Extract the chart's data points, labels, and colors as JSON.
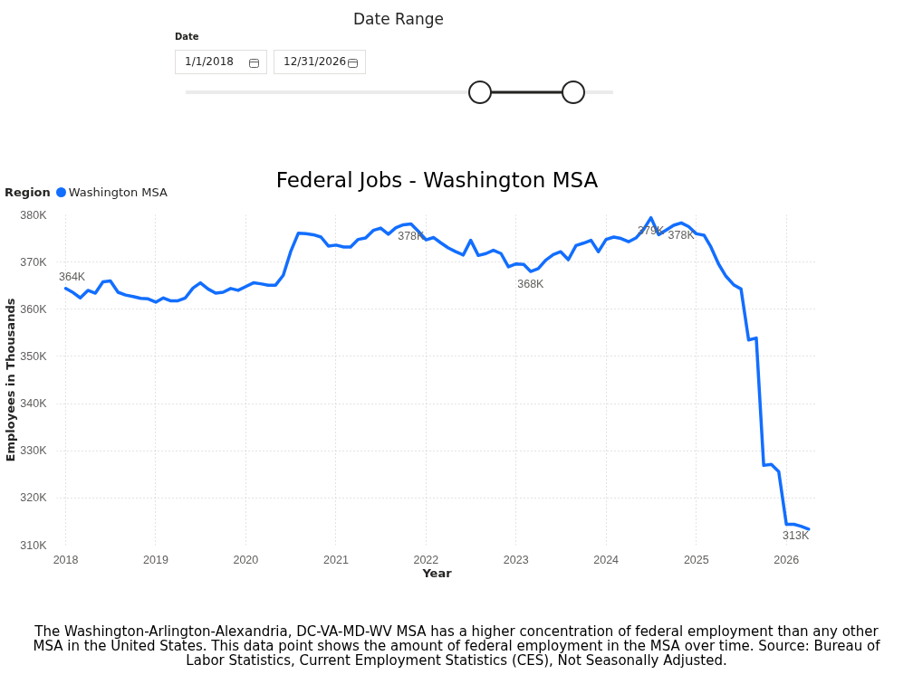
{
  "chart_data": {
    "type": "line",
    "title": "Federal Jobs - Washington MSA",
    "xlabel": "Year",
    "ylabel": "Employees in Thousands",
    "legend_title": "Region",
    "annotations": [
      "Date Range",
      "Date",
      "1/1/2018",
      "12/31/2026",
      "The Washington-Arlington-Alexandria, DC-VA-MD-WV MSA has a higher concentration of federal employment than any other MSA in the United States. This data point shows the amount of federal employment in the MSA over time. Source: Bureau of Labor Statistics, Current Employment Statistics (CES), Not Seasonally Adjusted."
    ],
    "x": [
      "2018-01",
      "2018-02",
      "2018-03",
      "2018-04",
      "2018-05",
      "2018-06",
      "2018-07",
      "2018-08",
      "2018-09",
      "2018-10",
      "2018-11",
      "2018-12",
      "2019-01",
      "2019-02",
      "2019-03",
      "2019-04",
      "2019-05",
      "2019-06",
      "2019-07",
      "2019-08",
      "2019-09",
      "2019-10",
      "2019-11",
      "2019-12",
      "2020-01",
      "2020-02",
      "2020-03",
      "2020-04",
      "2020-05",
      "2020-06",
      "2020-07",
      "2020-08",
      "2020-09",
      "2020-10",
      "2020-11",
      "2020-12",
      "2021-01",
      "2021-02",
      "2021-03",
      "2021-04",
      "2021-05",
      "2021-06",
      "2021-07",
      "2021-08",
      "2021-09",
      "2021-10",
      "2021-11",
      "2021-12",
      "2022-01",
      "2022-02",
      "2022-03",
      "2022-04",
      "2022-05",
      "2022-06",
      "2022-07",
      "2022-08",
      "2022-09",
      "2022-10",
      "2022-11",
      "2022-12",
      "2023-01",
      "2023-02",
      "2023-03",
      "2023-04",
      "2023-05",
      "2023-06",
      "2023-07",
      "2023-08",
      "2023-09",
      "2023-10",
      "2023-11",
      "2023-12",
      "2024-01",
      "2024-02",
      "2024-03",
      "2024-04",
      "2024-05",
      "2024-06",
      "2024-07",
      "2024-08",
      "2024-09",
      "2024-10",
      "2024-11",
      "2024-12",
      "2025-01",
      "2025-02",
      "2025-03",
      "2025-04",
      "2025-05",
      "2025-06",
      "2025-07",
      "2025-08",
      "2025-09",
      "2025-10",
      "2025-11",
      "2025-12",
      "2026-01",
      "2026-02",
      "2026-03",
      "2026-04"
    ],
    "series": [
      {
        "name": "Washington MSA",
        "color": "#126eff",
        "values": [
          364400,
          363500,
          362400,
          364000,
          363400,
          365800,
          366000,
          363600,
          363000,
          362700,
          362300,
          362200,
          361500,
          362400,
          361800,
          361800,
          362400,
          364500,
          365600,
          364300,
          363400,
          363600,
          364400,
          364000,
          364800,
          365600,
          365400,
          365100,
          365100,
          367200,
          372200,
          376100,
          376000,
          375800,
          375300,
          373400,
          373600,
          373200,
          373200,
          374800,
          375100,
          376700,
          377200,
          375900,
          377300,
          377900,
          378100,
          376500,
          374700,
          375200,
          374100,
          373000,
          372200,
          371500,
          374600,
          371400,
          371800,
          372500,
          371800,
          369000,
          369600,
          369500,
          368000,
          368600,
          370400,
          371600,
          372200,
          370500,
          373500,
          374000,
          374600,
          372200,
          374800,
          375300,
          375000,
          374300,
          375100,
          376900,
          379400,
          375800,
          376800,
          377800,
          378300,
          377500,
          376000,
          375700,
          373200,
          369600,
          367000,
          365200,
          364300,
          353500,
          353900,
          326900,
          327100,
          325600,
          314400,
          314400,
          314000,
          313400
        ],
        "value_labels": [
          "364K",
          null,
          null,
          null,
          null,
          null,
          null,
          null,
          null,
          null,
          null,
          null,
          null,
          null,
          null,
          null,
          null,
          null,
          null,
          null,
          null,
          null,
          null,
          null,
          null,
          null,
          null,
          null,
          null,
          null,
          null,
          null,
          null,
          null,
          null,
          null,
          null,
          null,
          null,
          null,
          null,
          null,
          null,
          null,
          null,
          null,
          "378K",
          null,
          null,
          null,
          null,
          null,
          null,
          null,
          null,
          null,
          null,
          null,
          null,
          null,
          null,
          null,
          "368K",
          null,
          null,
          null,
          null,
          null,
          null,
          null,
          null,
          null,
          null,
          null,
          null,
          null,
          null,
          null,
          "379K",
          null,
          null,
          null,
          "378K",
          null,
          null,
          null,
          null,
          null,
          null,
          null,
          null,
          null,
          null,
          null,
          null,
          null,
          null,
          null,
          null,
          "313K"
        ]
      }
    ],
    "xlim": [
      "2017-11-25",
      "2026-05-07"
    ],
    "xticks": [
      "2018",
      "2019",
      "2020",
      "2021",
      "2022",
      "2023",
      "2024",
      "2025",
      "2026"
    ],
    "ylim": [
      310000,
      380000
    ],
    "yticks": [
      {
        "value": 310000,
        "label": "310K"
      },
      {
        "value": 320000,
        "label": "320K"
      },
      {
        "value": 330000,
        "label": "330K"
      },
      {
        "value": 340000,
        "label": "340K"
      },
      {
        "value": 350000,
        "label": "350K"
      },
      {
        "value": 360000,
        "label": "360K"
      },
      {
        "value": 370000,
        "label": "370K"
      },
      {
        "value": 380000,
        "label": "380K"
      }
    ],
    "grid": true,
    "legend": "top left"
  }
}
